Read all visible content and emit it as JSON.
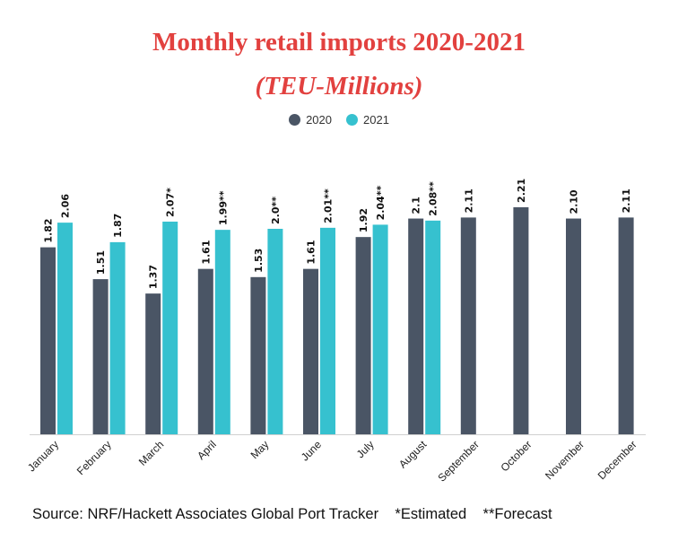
{
  "chart_data": {
    "type": "bar",
    "title": "Monthly retail imports 2020-2021",
    "subtitle": "(TEU-Millions)",
    "categories": [
      "January",
      "February",
      "March",
      "April",
      "May",
      "June",
      "July",
      "August",
      "September",
      "October",
      "November",
      "December"
    ],
    "series": [
      {
        "name": "2020",
        "color": "#4a5565",
        "values": [
          1.82,
          1.51,
          1.37,
          1.61,
          1.53,
          1.61,
          1.92,
          2.1,
          2.11,
          2.21,
          2.1,
          2.11
        ],
        "labels": [
          "1.82",
          "1.51",
          "1.37",
          "1.61",
          "1.53",
          "1.61",
          "1.92",
          "2.1",
          "2.11",
          "2.21",
          "2.10",
          "2.11"
        ]
      },
      {
        "name": "2021",
        "color": "#36c1cf",
        "values": [
          2.06,
          1.87,
          2.07,
          1.99,
          2.0,
          2.01,
          2.04,
          2.08,
          null,
          null,
          null,
          null
        ],
        "labels": [
          "2.06",
          "1.87",
          "2.07*",
          "1.99**",
          "2.0**",
          "2.01**",
          "2.04**",
          "2.08**",
          null,
          null,
          null,
          null
        ]
      }
    ],
    "ylim": [
      0,
      2.5
    ],
    "grid": false,
    "legend_position": "top-center"
  },
  "footer": {
    "source": "Source: NRF/Hackett Associates Global Port Tracker",
    "estimated": "*Estimated",
    "forecast": "**Forecast"
  }
}
